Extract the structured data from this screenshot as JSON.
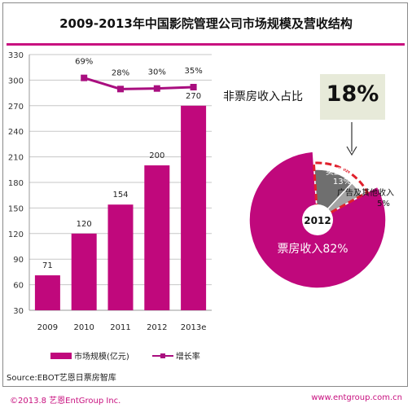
{
  "title": "2009-2013年中国影院管理公司市场规模及营收结构",
  "chart_data": [
    {
      "type": "bar",
      "categories": [
        "2009",
        "2010",
        "2011",
        "2012",
        "2013e"
      ],
      "series": [
        {
          "name": "市场规模(亿元)",
          "kind": "bar",
          "values": [
            71,
            120,
            154,
            200,
            270
          ],
          "labels": [
            "71",
            "120",
            "154",
            "200",
            "270"
          ]
        },
        {
          "name": "增长率",
          "kind": "line",
          "values": [
            null,
            69,
            28,
            30,
            35
          ],
          "labels": [
            "",
            "69%",
            "28%",
            "30%",
            "35%"
          ]
        }
      ],
      "yticks": [
        "30",
        "60",
        "90",
        "120",
        "150",
        "180",
        "210",
        "240",
        "270",
        "300",
        "330"
      ],
      "ylim": [
        30,
        330
      ],
      "line_plot_range": [
        0,
        60
      ],
      "colors": {
        "bar": "#c0087c",
        "line": "#a90e7f"
      },
      "legend_position": "bottom"
    },
    {
      "type": "pie",
      "title": "2012",
      "slices": [
        {
          "name": "票房收入",
          "label": "票房收入82%",
          "value": 82,
          "color": "#c0087c"
        },
        {
          "name": "卖品收入",
          "label_line1": "卖品收入",
          "label_line2": "13%",
          "value": 13,
          "color": "#6f6f6f"
        },
        {
          "name": "广告及其他收入",
          "label_line1": "广告及其他收入",
          "label_line2": "5%",
          "value": 5,
          "color": "#a4a4a4"
        }
      ],
      "callout": {
        "label": "非票房收入占比",
        "value": "18%"
      }
    }
  ],
  "source": "Source:EBOT艺恩日票房智库",
  "footer": {
    "left": "©2013.8 艺恩EntGroup Inc.",
    "right": "www.entgroup.com.cn"
  }
}
